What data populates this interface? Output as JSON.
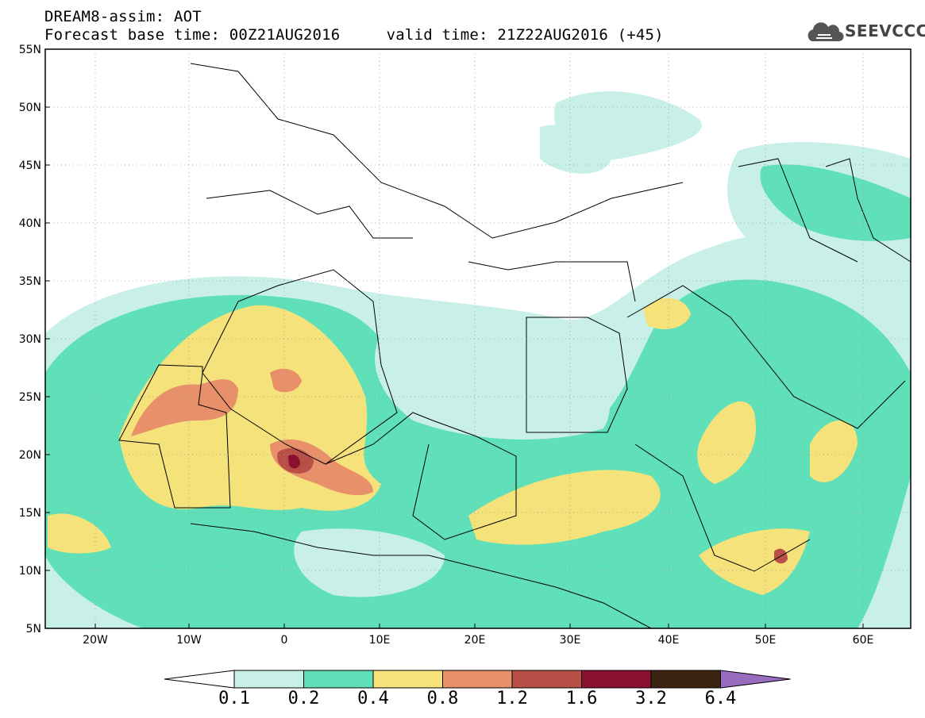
{
  "title": {
    "line1": "DREAM8-assim: AOT",
    "base_time_label": "Forecast base time: 00Z21AUG2016",
    "valid_time_label": "valid time: 21Z22AUG2016 (+45)"
  },
  "brand": {
    "name": "SEEVCCC",
    "icon": "cloud-logo-icon"
  },
  "axes": {
    "lat_labels": [
      "55N",
      "50N",
      "45N",
      "40N",
      "35N",
      "30N",
      "25N",
      "20N",
      "15N",
      "10N",
      "5N"
    ],
    "lon_labels": [
      "20W",
      "10W",
      "0",
      "10E",
      "20E",
      "30E",
      "40E",
      "50E",
      "60E"
    ]
  },
  "legend": {
    "labels": [
      "0.1",
      "0.2",
      "0.4",
      "0.8",
      "1.2",
      "1.6",
      "3.2",
      "6.4"
    ],
    "colors": [
      "#ffffff",
      "#c8f0e8",
      "#5fe0b8",
      "#f5e27a",
      "#e8906a",
      "#b85048",
      "#8a0f30",
      "#3a2410",
      "#9a6cc0"
    ]
  },
  "map_data": {
    "extent": {
      "lon": [
        -25,
        65
      ],
      "lat": [
        5,
        55
      ]
    },
    "variable": "AOT"
  }
}
